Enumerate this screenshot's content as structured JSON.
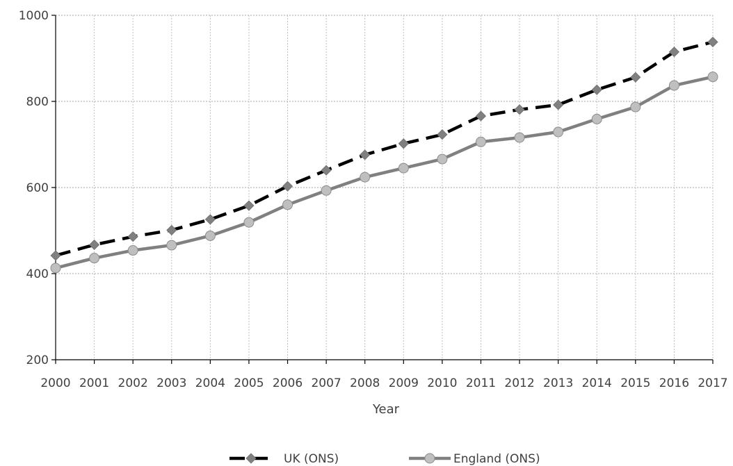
{
  "chart_data": {
    "type": "line",
    "title": "",
    "xlabel": "Year",
    "ylabel": "",
    "categories": [
      "2000",
      "2001",
      "2002",
      "2003",
      "2004",
      "2005",
      "2006",
      "2007",
      "2008",
      "2009",
      "2010",
      "2011",
      "2012",
      "2013",
      "2014",
      "2015",
      "2016",
      "2017"
    ],
    "ylim": [
      200,
      1000
    ],
    "yticks": [
      200,
      400,
      600,
      800,
      1000
    ],
    "grid": true,
    "legend_position": "bottom",
    "series": [
      {
        "name": "UK (ONS)",
        "color": "#000000",
        "marker_color": "#808080",
        "line_style": "dashed",
        "marker": "diamond",
        "values": [
          442,
          467,
          486,
          501,
          526,
          558,
          603,
          640,
          676,
          702,
          723,
          766,
          781,
          792,
          827,
          856,
          915,
          938
        ]
      },
      {
        "name": "England (ONS)",
        "color": "#808080",
        "marker_color": "#bfbfbf",
        "line_style": "solid",
        "marker": "circle",
        "values": [
          413,
          436,
          454,
          466,
          488,
          519,
          560,
          593,
          624,
          645,
          666,
          706,
          716,
          729,
          759,
          787,
          837,
          857
        ]
      }
    ]
  }
}
